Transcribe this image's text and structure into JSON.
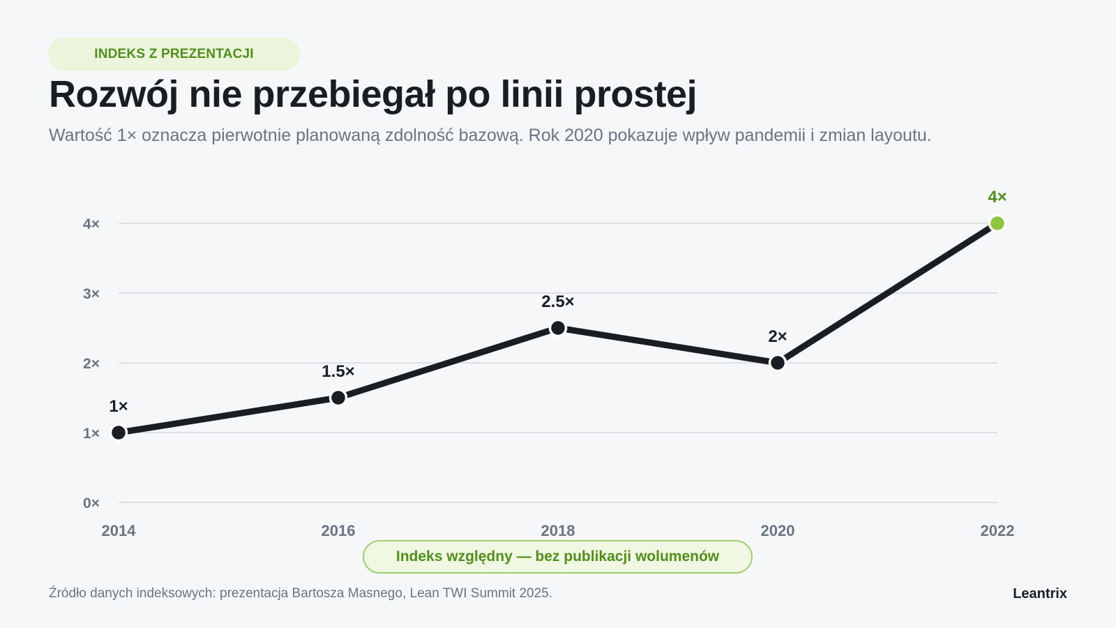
{
  "header": {
    "badge": "INDEKS Z PREZENTACJI",
    "title": "Rozwój nie przebiegał po linii prostej",
    "subtitle": "Wartość 1× oznacza pierwotnie planowaną zdolność bazową. Rok 2020 pokazuje wpływ pandemii i zmian layoutu."
  },
  "chart_data": {
    "type": "line",
    "x": [
      "2014",
      "2016",
      "2018",
      "2020",
      "2022"
    ],
    "values": [
      1,
      1.5,
      2.5,
      2,
      4
    ],
    "data_labels": [
      "1×",
      "1.5×",
      "2.5×",
      "2×",
      "4×"
    ],
    "yticks": [
      0,
      1,
      2,
      3,
      4
    ],
    "ytick_labels": [
      "0×",
      "1×",
      "2×",
      "3×",
      "4×"
    ],
    "ylim": [
      0,
      4
    ],
    "grid": true,
    "highlight_index": 4,
    "colors": {
      "line": "#1a1d21",
      "highlight": "#8cc63f",
      "highlight_label": "#4f8f1a",
      "grid": "#d3d8dd",
      "axis_text": "#6b7480"
    }
  },
  "note": "Indeks względny — bez publikacji wolumenów",
  "footer": {
    "source": "Źródło danych indeksowych: prezentacja Bartosza Masnego, Lean TWI Summit 2025.",
    "brand": "Leantrix"
  }
}
